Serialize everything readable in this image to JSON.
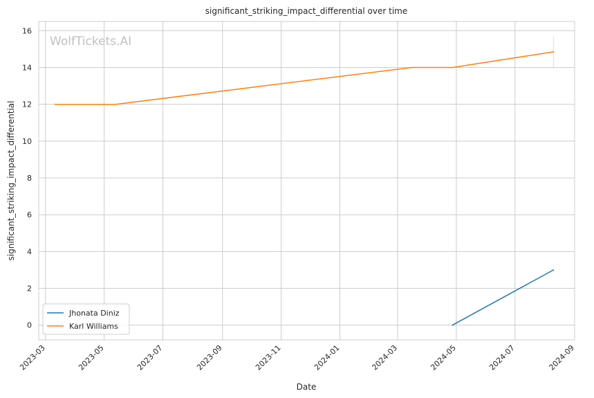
{
  "chart_data": {
    "type": "line",
    "title": "significant_striking_impact_differential over time",
    "xlabel": "Date",
    "ylabel": "significant_striking_impact_differential",
    "watermark": "WolfTickets.AI",
    "x_ticks": [
      "2023-03",
      "2023-05",
      "2023-07",
      "2023-09",
      "2023-11",
      "2024-01",
      "2024-03",
      "2024-05",
      "2024-07",
      "2024-09"
    ],
    "y_ticks": [
      "0",
      "2",
      "4",
      "6",
      "8",
      "10",
      "12",
      "14",
      "16"
    ],
    "xlim": [
      "2023-02-22",
      "2024-09-01"
    ],
    "ylim": [
      -0.8,
      16.5
    ],
    "grid": true,
    "legend_position": "lower-left",
    "series": [
      {
        "name": "Jhonata Diniz",
        "color": "#1f77b4",
        "x": [
          "2024-04-27",
          "2024-08-10"
        ],
        "y": [
          0,
          3
        ]
      },
      {
        "name": "Karl Williams",
        "color": "#ff7f0e",
        "x": [
          "2023-03-11",
          "2023-05-13",
          "2024-03-16",
          "2024-04-27",
          "2024-08-10"
        ],
        "y": [
          12,
          12,
          14,
          14,
          14.85
        ]
      }
    ]
  }
}
